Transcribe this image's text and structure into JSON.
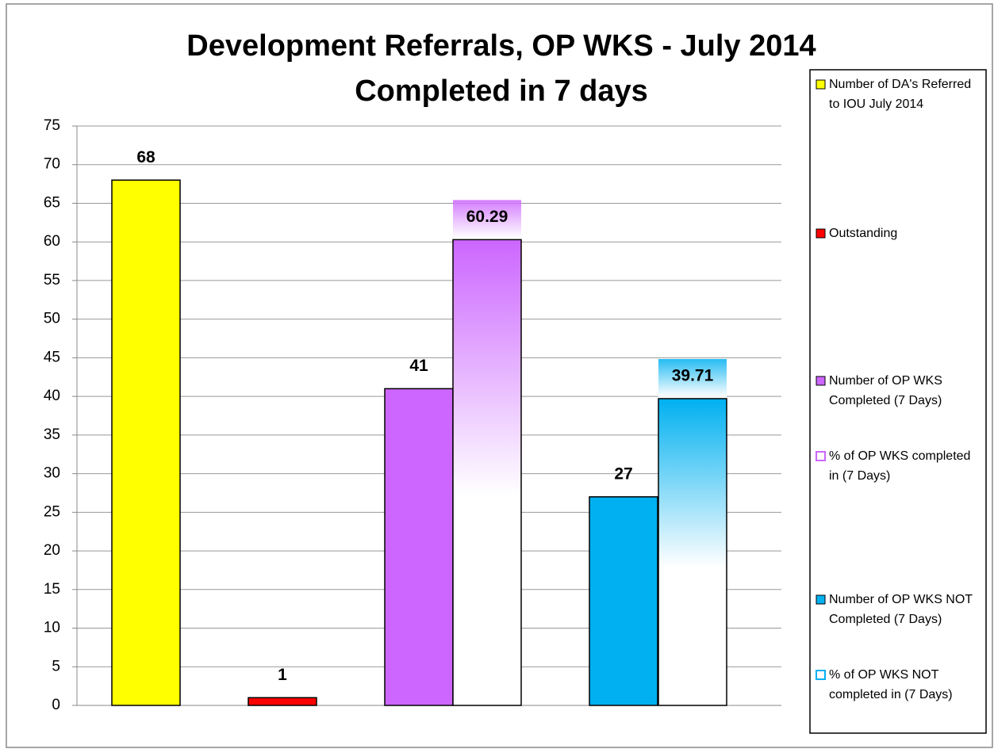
{
  "chart_data": {
    "type": "bar",
    "title": "Development Referrals, OP WKS - July 2014",
    "subtitle": "Completed in 7 days",
    "series": [
      {
        "name": "Number of DA's Referred to IOU July 2014",
        "color": "#ffff00",
        "values": [
          68
        ]
      },
      {
        "name": "Outstanding",
        "color": "#ff0000",
        "values": [
          1
        ]
      },
      {
        "name": "Number of OP WKS Completed (7  Days)",
        "color": "#cc66ff",
        "values": [
          41
        ]
      },
      {
        "name": "% of OP WKS completed in (7 Days)",
        "color": "#cc66ff",
        "gradient": true,
        "values": [
          60.29
        ]
      },
      {
        "name": "Number of OP WKS NOT Completed  (7 Days)",
        "color": "#00b0f0",
        "values": [
          27
        ]
      },
      {
        "name": "% of OP WKS NOT completed in (7 Days)",
        "color": "#00b0f0",
        "gradient": true,
        "values": [
          39.71
        ]
      }
    ],
    "ylim": [
      0,
      75
    ],
    "yticks": [
      0,
      5,
      10,
      15,
      20,
      25,
      30,
      35,
      40,
      45,
      50,
      55,
      60,
      65,
      70,
      75
    ],
    "grid": true,
    "legend": "right"
  }
}
